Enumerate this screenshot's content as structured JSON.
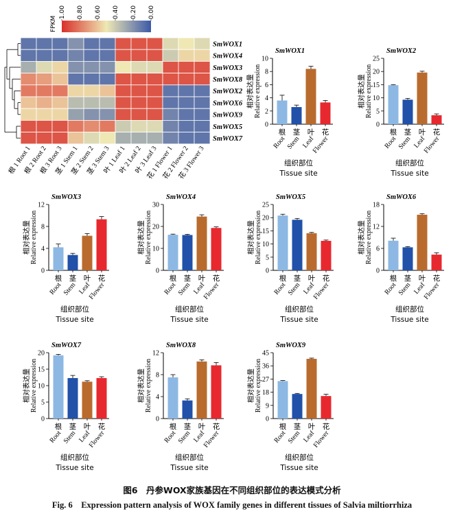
{
  "caption_zh": "图6　丹参WOX家族基因在不同组织部位的表达模式分析",
  "caption_en": "Fig. 6　Expression pattern analysis of WOX family genes in different tissues of Salvia miltiorrhiza",
  "colors": {
    "root": "#8db8e3",
    "stem": "#2151a8",
    "leaf": "#b96b2e",
    "flower": "#e8282f",
    "heat_low": "#3c59a8",
    "heat_mid": "#efe8b4",
    "heat_high": "#d9302b"
  },
  "chart_data": [
    {
      "type": "heatmap",
      "legend_title": "FPKM",
      "legend_ticks": [
        "1.00",
        "0.80",
        "0.60",
        "0.40",
        "0.20",
        "0.00"
      ],
      "genes": [
        "SmWOX1",
        "SmWOX4",
        "SmWOX3",
        "SmWOX8",
        "SmWOX2",
        "SmWOX6",
        "SmWOX9",
        "SmWOX5",
        "SmWOX7"
      ],
      "samples": [
        "根 1 Root 1",
        "根 2 Root 2",
        "根 3 Root 3",
        "茎 1 Stem 1",
        "茎 2 Stem 2",
        "茎 3 Stem 3",
        "叶 1 Leaf 1",
        "叶 2 Leaf 2",
        "叶 3 Leaf 3",
        "花 1 Flower 1",
        "花 2 Flower 2",
        "花 3 Flower 3"
      ],
      "values": [
        [
          0.1,
          0.1,
          0.1,
          0.2,
          0.1,
          0.1,
          0.9,
          0.9,
          0.9,
          0.45,
          0.5,
          0.45
        ],
        [
          0.1,
          0.1,
          0.1,
          0.15,
          0.1,
          0.1,
          0.9,
          0.9,
          0.9,
          0.4,
          0.55,
          0.55
        ],
        [
          0.3,
          0.45,
          0.55,
          0.2,
          0.2,
          0.2,
          0.5,
          0.45,
          0.45,
          0.9,
          0.9,
          0.9
        ],
        [
          0.75,
          0.7,
          0.6,
          0.1,
          0.1,
          0.1,
          0.9,
          0.9,
          0.9,
          0.9,
          0.9,
          0.9
        ],
        [
          0.8,
          0.8,
          0.8,
          0.55,
          0.55,
          0.6,
          0.9,
          0.9,
          0.9,
          0.1,
          0.1,
          0.1
        ],
        [
          0.6,
          0.65,
          0.6,
          0.35,
          0.35,
          0.35,
          0.9,
          0.9,
          0.9,
          0.1,
          0.1,
          0.1
        ],
        [
          0.55,
          0.55,
          0.55,
          0.25,
          0.2,
          0.2,
          0.9,
          0.9,
          0.9,
          0.15,
          0.1,
          0.1
        ],
        [
          0.9,
          0.9,
          0.9,
          0.8,
          0.75,
          0.8,
          0.4,
          0.45,
          0.45,
          0.15,
          0.1,
          0.1
        ],
        [
          0.9,
          0.9,
          0.9,
          0.6,
          0.45,
          0.5,
          0.3,
          0.3,
          0.3,
          0.15,
          0.1,
          0.1
        ]
      ]
    },
    {
      "type": "bar",
      "title": "SmWOX1",
      "ylabel_zh": "相对表达量",
      "ylabel_en": "Relative expression",
      "xlabel_zh": "组织部位",
      "xlabel_en": "Tissue site",
      "categories": [
        "Root",
        "Stem",
        "Leaf",
        "Flower"
      ],
      "categories_zh": [
        "根",
        "茎",
        "叶",
        "花"
      ],
      "values": [
        3.6,
        2.6,
        8.4,
        3.3
      ],
      "errors": [
        0.8,
        0.3,
        0.4,
        0.3
      ],
      "yticks": [
        0,
        2,
        4,
        6,
        8,
        10
      ],
      "ylim": [
        0,
        10
      ]
    },
    {
      "type": "bar",
      "title": "SmWOX2",
      "ylabel_zh": "相对表达量",
      "ylabel_en": "Relative expression",
      "xlabel_zh": "组织部位",
      "xlabel_en": "Tissue site",
      "categories": [
        "Root",
        "Stem",
        "Leaf",
        "Flower"
      ],
      "categories_zh": [
        "根",
        "茎",
        "叶",
        "花"
      ],
      "values": [
        14.8,
        9.3,
        19.6,
        3.4
      ],
      "errors": [
        0.2,
        0.5,
        0.5,
        0.5
      ],
      "yticks": [
        0,
        5,
        10,
        15,
        20,
        25
      ],
      "ylim": [
        0,
        25
      ]
    },
    {
      "type": "bar",
      "title": "SmWOX3",
      "ylabel_zh": "相对表达量",
      "ylabel_en": "Relative expression",
      "xlabel_zh": "组织部位",
      "xlabel_en": "Tissue site",
      "categories": [
        "Root",
        "Stem",
        "Leaf",
        "Flower"
      ],
      "categories_zh": [
        "根",
        "茎",
        "叶",
        "花"
      ],
      "values": [
        4.2,
        2.8,
        6.3,
        9.3
      ],
      "errors": [
        0.6,
        0.3,
        0.4,
        0.5
      ],
      "yticks": [
        0,
        4,
        8,
        12
      ],
      "ylim": [
        0,
        12
      ]
    },
    {
      "type": "bar",
      "title": "SmWOX4",
      "ylabel_zh": "相对表达量",
      "ylabel_en": "Relative expression",
      "xlabel_zh": "组织部位",
      "xlabel_en": "Tissue site",
      "categories": [
        "Root",
        "Stem",
        "Leaf",
        "Flower"
      ],
      "categories_zh": [
        "根",
        "茎",
        "叶",
        "花"
      ],
      "values": [
        16.2,
        16.1,
        24.5,
        19.3
      ],
      "errors": [
        0.3,
        0.3,
        0.8,
        0.5
      ],
      "yticks": [
        0,
        10,
        20,
        30
      ],
      "ylim": [
        0,
        30
      ]
    },
    {
      "type": "bar",
      "title": "SmWOX5",
      "ylabel_zh": "相对表达量",
      "ylabel_en": "Relative expression",
      "xlabel_zh": "组织部位",
      "xlabel_en": "Tissue site",
      "categories": [
        "Root",
        "Stem",
        "Leaf",
        "Flower"
      ],
      "categories_zh": [
        "根",
        "茎",
        "叶",
        "花"
      ],
      "values": [
        20.8,
        19.2,
        14.1,
        11.2
      ],
      "errors": [
        0.5,
        0.5,
        0.3,
        0.3
      ],
      "yticks": [
        0,
        5,
        10,
        15,
        20,
        25
      ],
      "ylim": [
        0,
        25
      ]
    },
    {
      "type": "bar",
      "title": "SmWOX6",
      "ylabel_zh": "相对表达量",
      "ylabel_en": "Relative expression",
      "xlabel_zh": "组织部位",
      "xlabel_en": "Tissue site",
      "categories": [
        "Root",
        "Stem",
        "Leaf",
        "Flower"
      ],
      "categories_zh": [
        "根",
        "茎",
        "叶",
        "花"
      ],
      "values": [
        8.1,
        6.3,
        15.2,
        4.3
      ],
      "errors": [
        0.7,
        0.2,
        0.3,
        0.5
      ],
      "yticks": [
        0,
        6,
        12,
        18
      ],
      "ylim": [
        0,
        18
      ]
    },
    {
      "type": "bar",
      "title": "SmWOX7",
      "ylabel_zh": "相对表达量",
      "ylabel_en": "Relative expression",
      "xlabel_zh": "组织部位",
      "xlabel_en": "Tissue site",
      "categories": [
        "Root",
        "Stem",
        "Leaf",
        "Flower"
      ],
      "categories_zh": [
        "根",
        "茎",
        "叶",
        "花"
      ],
      "values": [
        19.2,
        12.3,
        11.2,
        12.3
      ],
      "errors": [
        0.3,
        0.8,
        0.3,
        0.4
      ],
      "yticks": [
        0,
        5,
        10,
        15,
        20
      ],
      "ylim": [
        0,
        20
      ]
    },
    {
      "type": "bar",
      "title": "SmWOX8",
      "ylabel_zh": "相对表达量",
      "ylabel_en": "Relative expression",
      "xlabel_zh": "组织部位",
      "xlabel_en": "Tissue site",
      "categories": [
        "Root",
        "Stem",
        "Leaf",
        "Flower"
      ],
      "categories_zh": [
        "根",
        "茎",
        "叶",
        "花"
      ],
      "values": [
        7.5,
        3.3,
        10.4,
        9.7
      ],
      "errors": [
        0.5,
        0.3,
        0.3,
        0.5
      ],
      "yticks": [
        0,
        4,
        8,
        12
      ],
      "ylim": [
        0,
        12
      ]
    },
    {
      "type": "bar",
      "title": "SmWOX9",
      "ylabel_zh": "相对表达量",
      "ylabel_en": "Relative expression",
      "xlabel_zh": "组织部位",
      "xlabel_en": "Tissue site",
      "categories": [
        "Root",
        "Stem",
        "Leaf",
        "Flower"
      ],
      "categories_zh": [
        "根",
        "茎",
        "叶",
        "花"
      ],
      "values": [
        25.6,
        16.8,
        40.8,
        15.4
      ],
      "errors": [
        0.4,
        0.4,
        0.5,
        1.2
      ],
      "yticks": [
        0,
        9,
        18,
        27,
        36,
        45
      ],
      "ylim": [
        0,
        45
      ]
    }
  ]
}
